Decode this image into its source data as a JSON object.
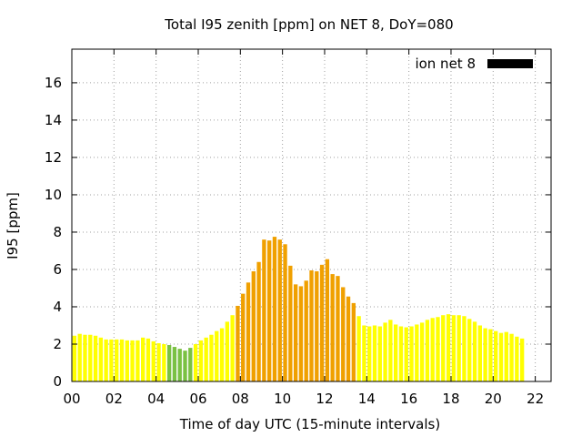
{
  "chart_data": {
    "type": "bar",
    "title": "Total I95 zenith [ppm] on NET 8, DoY=080",
    "xlabel": "Time of day UTC (15-minute intervals)",
    "ylabel": "I95 [ppm]",
    "legend": {
      "label": "ion net 8",
      "color": "#000000",
      "placement": "top-right"
    },
    "xlim": [
      0,
      22.75
    ],
    "ylim": [
      0,
      17.8
    ],
    "grid": true,
    "x_ticks": [
      "00",
      "02",
      "04",
      "06",
      "08",
      "10",
      "12",
      "14",
      "16",
      "18",
      "20",
      "22"
    ],
    "y_ticks": [
      "0",
      "2",
      "4",
      "6",
      "8",
      "10",
      "12",
      "14",
      "16"
    ],
    "x_tick_values": [
      0,
      2,
      4,
      6,
      8,
      10,
      12,
      14,
      16,
      18,
      20,
      22
    ],
    "y_tick_values": [
      0,
      2,
      4,
      6,
      8,
      10,
      12,
      14,
      16
    ],
    "interval_hours": 0.25,
    "values": [
      2.45,
      2.55,
      2.5,
      2.5,
      2.45,
      2.35,
      2.25,
      2.25,
      2.25,
      2.25,
      2.2,
      2.2,
      2.2,
      2.35,
      2.3,
      2.15,
      2.05,
      2.0,
      1.95,
      1.85,
      1.75,
      1.65,
      1.8,
      2.0,
      2.2,
      2.35,
      2.5,
      2.7,
      2.85,
      3.2,
      3.55,
      4.05,
      4.7,
      5.3,
      5.9,
      6.4,
      7.6,
      7.55,
      7.75,
      7.6,
      7.35,
      6.2,
      5.2,
      5.1,
      5.4,
      5.95,
      5.9,
      6.25,
      6.55,
      5.75,
      5.65,
      5.05,
      4.55,
      4.2,
      3.5,
      3.0,
      2.95,
      3.0,
      2.95,
      3.15,
      3.3,
      3.05,
      2.95,
      2.9,
      2.95,
      3.05,
      3.15,
      3.3,
      3.4,
      3.45,
      3.55,
      3.6,
      3.55,
      3.55,
      3.5,
      3.35,
      3.2,
      3.0,
      2.85,
      2.8,
      2.7,
      2.6,
      2.65,
      2.55,
      2.4,
      2.3
    ],
    "bar_colors": {
      "low_green": "#7ac143",
      "normal_yellow": "#ffff00",
      "mid_yellow": "#d8e000",
      "elevated_orange": "#f0a000"
    },
    "color_thresholds": {
      "green_below": 2.0,
      "orange_from": 4.0
    }
  }
}
